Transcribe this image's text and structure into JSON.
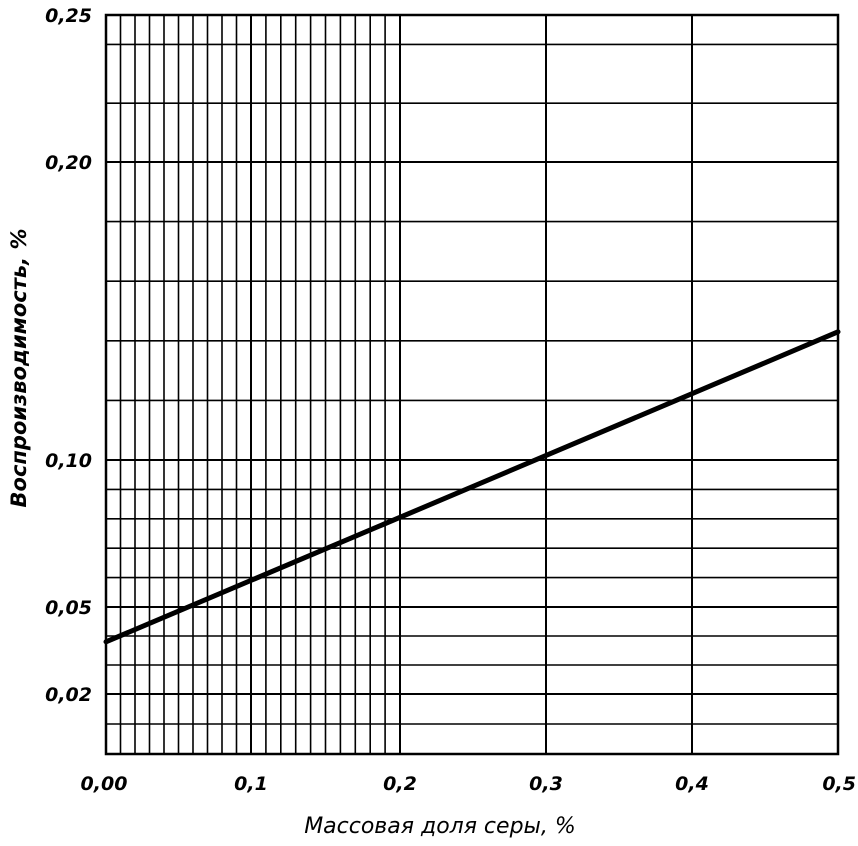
{
  "chart_data": {
    "type": "line",
    "title": "",
    "xlabel": "Массовая доля серы, %",
    "ylabel": "Воспроизводимость, %",
    "xlim": [
      0,
      0.5
    ],
    "ylim": [
      0,
      0.25
    ],
    "grid": true,
    "x_ticks": [
      0,
      0.1,
      0.2,
      0.3,
      0.4,
      0.5
    ],
    "x_tick_labels": [
      "0,00",
      "0,1",
      "0,2",
      "0,3",
      "0,4",
      "0,5"
    ],
    "y_ticks": [
      0.02,
      0.05,
      0.1,
      0.2,
      0.25
    ],
    "y_tick_labels": [
      "0,02",
      "0,05",
      "0,10",
      "0,20",
      "0,25"
    ],
    "x_minor_grid": [
      0,
      0.01,
      0.02,
      0.03,
      0.04,
      0.05,
      0.06,
      0.07,
      0.08,
      0.09,
      0.1,
      0.11,
      0.12,
      0.13,
      0.14,
      0.15,
      0.16,
      0.17,
      0.18,
      0.19,
      0.2,
      0.3,
      0.4,
      0.5
    ],
    "y_minor_grid": [
      0,
      0.01,
      0.02,
      0.03,
      0.04,
      0.05,
      0.06,
      0.07,
      0.08,
      0.09,
      0.1,
      0.12,
      0.14,
      0.16,
      0.18,
      0.2,
      0.22,
      0.24,
      0.25
    ],
    "series": [
      {
        "name": "",
        "x": [
          0,
          0.5
        ],
        "y": [
          0.038,
          0.143
        ]
      }
    ]
  }
}
